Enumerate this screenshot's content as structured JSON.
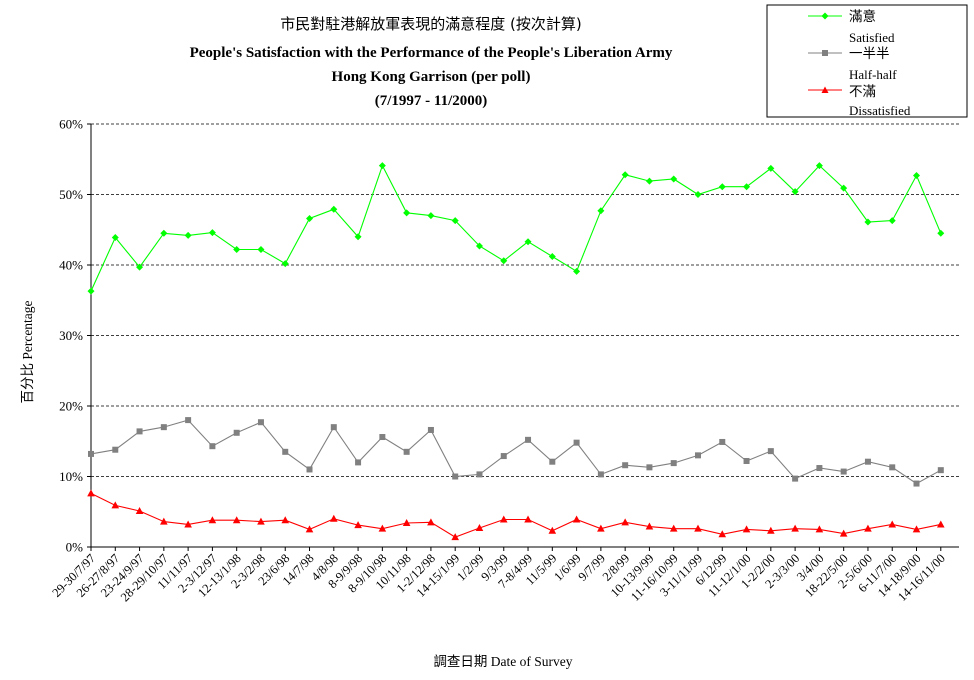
{
  "chart_data": {
    "type": "line",
    "title_lines": [
      "市民對駐港解放軍表現的滿意程度 (按次計算)",
      "People's Satisfaction with the Performance of the People's Liberation Army",
      "Hong Kong Garrison  (per poll)",
      "(7/1997 - 11/2000)"
    ],
    "xlabel": "調查日期 Date of Survey",
    "ylabel": "百分比 Percentage",
    "ylim": [
      0,
      60
    ],
    "yticks": [
      "0%",
      "10%",
      "20%",
      "30%",
      "40%",
      "50%",
      "60%"
    ],
    "grid": "horizontal dashed",
    "legend_position": "top-right",
    "categories": [
      "29-30/7/97",
      "26-27/8/97",
      "23-24/9/97",
      "28-29/10/97",
      "11/11/97",
      "2-3/12/97",
      "12-13/1/98",
      "2-3/2/98",
      "23/6/98",
      "14/7/98",
      "4/8/98",
      "8-9/9/98",
      "8-9/10/98",
      "10/11/98",
      "1-2/12/98",
      "14-15/1/99",
      "1/2/99",
      "9/3/99",
      "7-8/4/99",
      "11/5/99",
      "1/6/99",
      "9/7/99",
      "2/8/99",
      "10-13/9/99",
      "11-16/10/99",
      "3-11/11/99",
      "6/12/99",
      "11-12/1/00",
      "1-2/2/00",
      "2-3/3/00",
      "3/4/00",
      "18-22/5/00",
      "2-5/6/00",
      "6-11/7/00",
      "14-18/9/00",
      "14-16/11/00"
    ],
    "series": [
      {
        "key": "satisfied",
        "name_zh": "滿意",
        "name_en": "Satisfied",
        "color": "#00ff00",
        "marker": "diamond",
        "values": [
          36.3,
          43.9,
          39.7,
          44.5,
          44.2,
          44.6,
          42.2,
          42.2,
          40.2,
          46.6,
          47.9,
          44.0,
          54.1,
          47.4,
          47.0,
          46.3,
          42.7,
          40.6,
          43.3,
          41.2,
          39.1,
          47.7,
          52.8,
          51.9,
          52.2,
          50.0,
          51.1,
          51.1,
          53.7,
          50.4,
          54.1,
          50.9,
          46.1,
          46.3,
          52.7,
          44.5
        ]
      },
      {
        "key": "half",
        "name_zh": "一半半",
        "name_en": "Half-half",
        "color": "#808080",
        "marker": "square",
        "values": [
          13.2,
          13.8,
          16.4,
          17.0,
          18.0,
          14.3,
          16.2,
          17.7,
          13.5,
          11.0,
          17.0,
          12.0,
          15.6,
          13.5,
          16.6,
          10.0,
          10.3,
          12.9,
          15.2,
          12.1,
          14.8,
          10.3,
          11.6,
          11.3,
          11.9,
          13.0,
          14.9,
          12.2,
          13.6,
          9.7,
          11.2,
          10.7,
          12.1,
          11.3,
          9.0,
          10.9
        ]
      },
      {
        "key": "dissatisfied",
        "name_zh": "不滿",
        "name_en": "Dissatisfied",
        "color": "#ff0000",
        "marker": "triangle",
        "values": [
          7.6,
          5.9,
          5.1,
          3.6,
          3.2,
          3.8,
          3.8,
          3.6,
          3.8,
          2.5,
          4.0,
          3.1,
          2.6,
          3.4,
          3.5,
          1.4,
          2.7,
          3.9,
          3.9,
          2.3,
          3.9,
          2.6,
          3.5,
          2.9,
          2.6,
          2.6,
          1.8,
          2.5,
          2.3,
          2.6,
          2.5,
          1.9,
          2.6,
          3.2,
          2.5,
          3.2
        ]
      }
    ]
  }
}
